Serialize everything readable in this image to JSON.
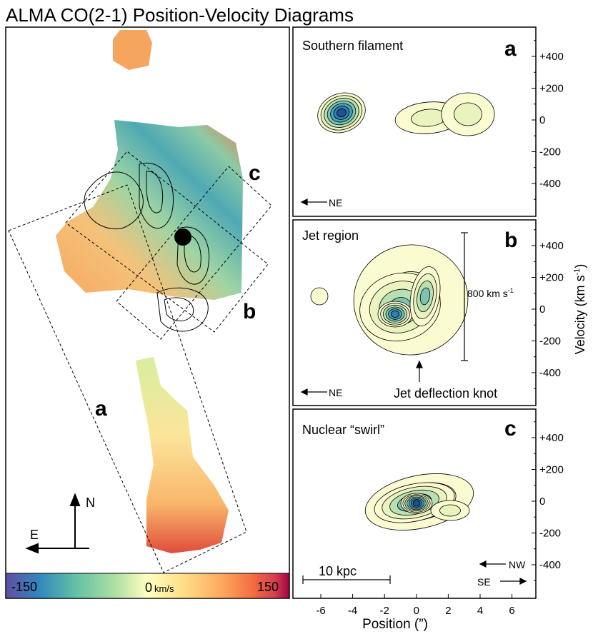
{
  "title": "ALMA CO(2-1) Position-Velocity Diagrams",
  "map": {
    "box_labels": [
      "c",
      "b",
      "a"
    ],
    "compass": {
      "north": "N",
      "east": "E"
    },
    "colorbar": {
      "min": "-150",
      "mid": "0",
      "mid_unit": "km/s",
      "max": "150"
    }
  },
  "panels": [
    {
      "letter": "a",
      "title": "Southern filament",
      "direction": "NE"
    },
    {
      "letter": "b",
      "title": "Jet region",
      "direction": "NE",
      "scale_bar": {
        "text": "800 km s",
        "sup": "-1"
      },
      "annotation": "Jet deflection knot"
    },
    {
      "letter": "c",
      "title": "Nuclear “swirl”",
      "scale_bar": "10 kpc",
      "directions": [
        "NW",
        "SE"
      ]
    }
  ],
  "velocity_ticks": [
    "+400",
    "+200",
    "0",
    "-200",
    "-400"
  ],
  "position_ticks": [
    "-6",
    "-4",
    "-2",
    "0",
    "2",
    "4",
    "6"
  ],
  "x_label": "Position (”)",
  "y_label": {
    "text": "Velocity (km s",
    "sup": "-1",
    "end": ")"
  }
}
